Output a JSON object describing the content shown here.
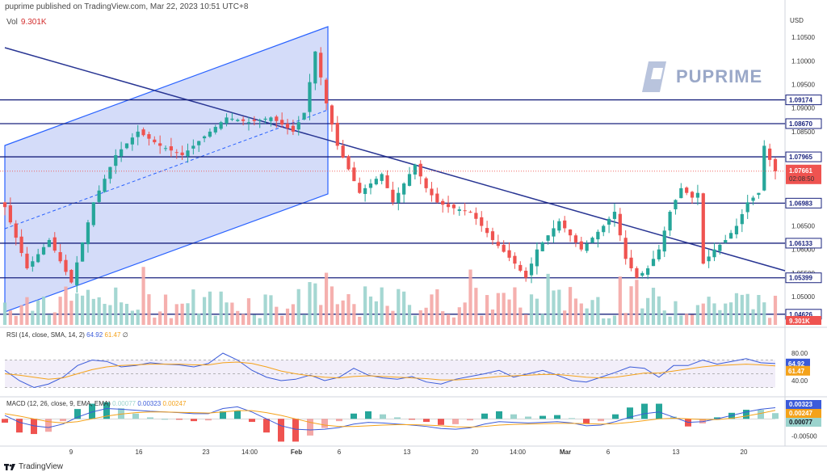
{
  "header": {
    "publisher_line": "puprime published on TradingView.com, Mar 22, 2023 10:51 UTC+8"
  },
  "volume_legend": {
    "label": "Vol",
    "value": "9.301K"
  },
  "watermark": {
    "text": "PUPRIME"
  },
  "brand": {
    "text": "TradingView",
    "icon": "tradingview-logo-icon"
  },
  "currency_label": "USD",
  "rsi_legend": {
    "label": "RSI (14, close, SMA, 14, 2)",
    "rsi": "64.92",
    "sma": "61.47",
    "extra": "∅"
  },
  "macd_legend": {
    "label": "MACD (12, 26, close, 9, EMA, EMA)",
    "hist": "0.00077",
    "macd": "0.00323",
    "signal": "0.00247"
  },
  "colors": {
    "up": "#26a69a",
    "down": "#ef5350",
    "level": "#1a237e",
    "channel": "#2962ff",
    "rsi": "#3b5bd9",
    "rsi_sma": "#f4a21a",
    "price_tag": "#ef5350"
  },
  "chart_data": [
    {
      "type": "candlestick",
      "title": "",
      "y_axis_ticks": [
        "1.10500",
        "1.10000",
        "1.09500",
        "1.09000",
        "1.08500",
        "1.08000",
        "1.07500",
        "1.07000",
        "1.06500",
        "1.06000",
        "1.05500",
        "1.05000"
      ],
      "ylim": [
        1.044,
        1.1095
      ],
      "x_axis_ticks": [
        "9",
        "16",
        "23",
        "14:00",
        "Feb",
        "6",
        "13",
        "20",
        "14:00",
        "Mar",
        "6",
        "13",
        "20"
      ],
      "horizontal_levels": [
        1.09174,
        1.0867,
        1.07965,
        1.06983,
        1.06133,
        1.05399,
        1.04626
      ],
      "level_labels": [
        "1.09174",
        "1.08670",
        "1.07965",
        "1.06983",
        "1.06133",
        "1.05399",
        "1.04626"
      ],
      "current_price": {
        "value": 1.07661,
        "label": "1.07661",
        "countdown": "02:08:50"
      },
      "volume_tag": "9.301K",
      "close_path": [
        [
          0,
          1.069
        ],
        [
          4,
          1.056
        ],
        [
          8,
          1.062
        ],
        [
          12,
          1.053
        ],
        [
          16,
          1.07
        ],
        [
          20,
          1.08
        ],
        [
          24,
          1.085
        ],
        [
          28,
          1.082
        ],
        [
          32,
          1.08
        ],
        [
          36,
          1.084
        ],
        [
          40,
          1.088
        ],
        [
          44,
          1.087
        ],
        [
          48,
          1.088
        ],
        [
          52,
          1.085
        ],
        [
          54,
          1.089
        ],
        [
          56,
          1.102
        ],
        [
          58,
          1.091
        ],
        [
          60,
          1.082
        ],
        [
          62,
          1.077
        ],
        [
          64,
          1.072
        ],
        [
          66,
          1.074
        ],
        [
          68,
          1.076
        ],
        [
          70,
          1.07
        ],
        [
          72,
          1.074
        ],
        [
          74,
          1.078
        ],
        [
          76,
          1.073
        ],
        [
          78,
          1.07
        ],
        [
          80,
          1.069
        ],
        [
          84,
          1.068
        ],
        [
          88,
          1.062
        ],
        [
          92,
          1.057
        ],
        [
          94,
          1.054
        ],
        [
          96,
          1.06
        ],
        [
          100,
          1.066
        ],
        [
          104,
          1.06
        ],
        [
          108,
          1.065
        ],
        [
          110,
          1.068
        ],
        [
          112,
          1.058
        ],
        [
          114,
          1.054
        ],
        [
          116,
          1.056
        ],
        [
          118,
          1.06
        ],
        [
          120,
          1.068
        ],
        [
          122,
          1.073
        ],
        [
          124,
          1.071
        ],
        [
          125,
          1.072
        ],
        [
          126,
          1.057
        ],
        [
          128,
          1.06
        ],
        [
          130,
          1.062
        ],
        [
          132,
          1.065
        ],
        [
          134,
          1.07
        ],
        [
          136,
          1.072
        ],
        [
          137,
          1.082
        ],
        [
          138,
          1.079
        ],
        [
          139,
          1.0766
        ]
      ],
      "volume_note": "volume bars shown along the bottom of the price pane"
    },
    {
      "type": "line",
      "title": "RSI (14, close, SMA, 14, 2)",
      "y_axis_ticks": [
        "80.00",
        "40.00"
      ],
      "ylim": [
        20,
        100
      ],
      "series": [
        {
          "name": "RSI",
          "values": [
            55,
            40,
            30,
            35,
            45,
            62,
            70,
            68,
            60,
            62,
            66,
            64,
            63,
            60,
            65,
            80,
            70,
            55,
            45,
            40,
            42,
            48,
            40,
            45,
            58,
            48,
            44,
            42,
            46,
            38,
            35,
            42,
            46,
            50,
            55,
            45,
            50,
            55,
            48,
            40,
            38,
            45,
            52,
            60,
            58,
            45,
            62,
            62,
            70,
            64,
            68,
            72,
            66,
            64.92
          ]
        },
        {
          "name": "SMA",
          "values": [
            50,
            48,
            45,
            42,
            44,
            50,
            56,
            60,
            62,
            63,
            64,
            64,
            64,
            63,
            63,
            66,
            67,
            65,
            60,
            54,
            50,
            47,
            45,
            44,
            46,
            47,
            46,
            45,
            44,
            43,
            41,
            41,
            42,
            44,
            46,
            47,
            48,
            49,
            49,
            47,
            45,
            44,
            45,
            48,
            51,
            51,
            54,
            57,
            60,
            62,
            63,
            64,
            63,
            61.47
          ]
        }
      ]
    },
    {
      "type": "line",
      "title": "MACD (12, 26, close, 9, EMA, EMA)",
      "y_axis_ticks": [
        "-0.00500"
      ],
      "ylim": [
        -0.0072,
        0.005
      ],
      "series": [
        {
          "name": "MACD",
          "values": [
            0.001,
            -0.001,
            -0.002,
            -0.0025,
            -0.0015,
            0.0005,
            0.002,
            0.003,
            0.0028,
            0.0025,
            0.0022,
            0.002,
            0.0018,
            0.0015,
            0.0015,
            0.003,
            0.0035,
            0.002,
            0.0,
            -0.002,
            -0.003,
            -0.0032,
            -0.003,
            -0.0025,
            -0.0015,
            -0.001,
            -0.0012,
            -0.0015,
            -0.0018,
            -0.0022,
            -0.0028,
            -0.003,
            -0.0026,
            -0.0015,
            -0.0008,
            -0.001,
            -0.0012,
            -0.001,
            -0.0008,
            -0.0012,
            -0.002,
            -0.0018,
            -0.0008,
            0.0005,
            0.0015,
            0.002,
            0.0005,
            -0.001,
            -0.0008,
            0.0,
            0.001,
            0.002,
            0.0028,
            0.00323
          ]
        },
        {
          "name": "Signal",
          "values": [
            0.0015,
            0.0008,
            0.0,
            -0.0008,
            -0.0012,
            -0.0008,
            0.0,
            0.0008,
            0.0014,
            0.0018,
            0.002,
            0.002,
            0.0019,
            0.0018,
            0.0017,
            0.002,
            0.0024,
            0.0024,
            0.0018,
            0.001,
            0.0,
            -0.001,
            -0.0018,
            -0.0022,
            -0.0022,
            -0.002,
            -0.0018,
            -0.0017,
            -0.0017,
            -0.0018,
            -0.002,
            -0.0023,
            -0.0024,
            -0.0022,
            -0.0018,
            -0.0016,
            -0.0015,
            -0.0014,
            -0.0013,
            -0.0013,
            -0.0014,
            -0.0015,
            -0.0014,
            -0.001,
            -0.0005,
            0.0,
            0.0002,
            0.0,
            -0.0002,
            -0.0002,
            0.0002,
            0.0008,
            0.0016,
            0.00247
          ]
        }
      ]
    }
  ]
}
